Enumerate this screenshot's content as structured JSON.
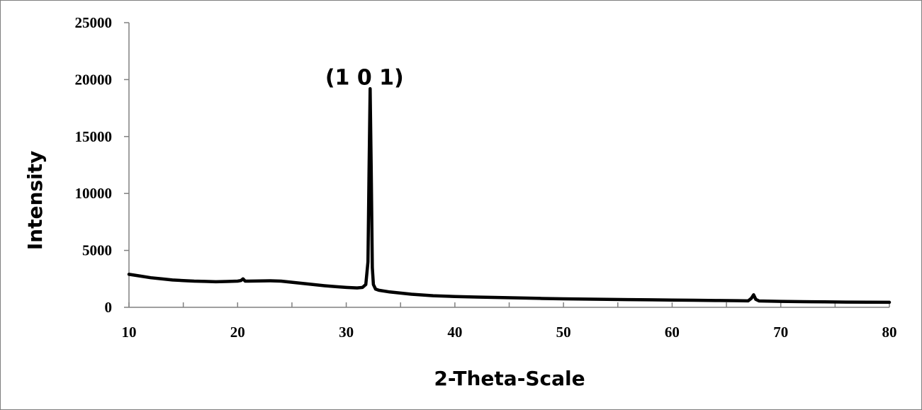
{
  "chart_data": {
    "type": "line",
    "title": "",
    "xlabel": "2-Theta-Scale",
    "ylabel": "Intensity",
    "xlim": [
      10,
      80
    ],
    "ylim": [
      0,
      25000
    ],
    "x_ticks": [
      10,
      20,
      30,
      40,
      50,
      60,
      70,
      80
    ],
    "y_ticks": [
      0,
      5000,
      10000,
      15000,
      20000,
      25000
    ],
    "grid": false,
    "legend": "none",
    "line_color": "#000000",
    "annotations": [
      {
        "text": "(1 0 1)",
        "x": 32.2,
        "y": 20000
      }
    ],
    "series": [
      {
        "x": [
          10,
          11,
          12,
          13,
          14,
          15,
          16,
          17,
          18,
          19,
          20,
          20.3,
          20.5,
          20.7,
          21,
          22,
          23,
          24,
          25,
          26,
          27,
          28,
          29,
          30,
          31,
          31.5,
          31.8,
          32.0,
          32.1,
          32.2,
          32.3,
          32.4,
          32.5,
          32.7,
          33,
          34,
          35,
          36,
          38,
          40,
          42,
          44,
          46,
          48,
          50,
          52,
          54,
          56,
          58,
          60,
          62,
          64,
          66,
          67,
          67.3,
          67.5,
          67.7,
          68,
          70,
          72,
          74,
          76,
          78,
          80
        ],
        "y": [
          2900,
          2750,
          2600,
          2500,
          2400,
          2350,
          2300,
          2280,
          2250,
          2270,
          2300,
          2350,
          2500,
          2300,
          2300,
          2320,
          2330,
          2300,
          2200,
          2100,
          2000,
          1900,
          1820,
          1750,
          1700,
          1750,
          2000,
          4000,
          12000,
          19200,
          12000,
          3500,
          2000,
          1600,
          1500,
          1350,
          1250,
          1150,
          1020,
          950,
          900,
          860,
          820,
          780,
          750,
          720,
          700,
          680,
          660,
          640,
          620,
          600,
          580,
          570,
          800,
          1100,
          700,
          560,
          520,
          500,
          480,
          460,
          450,
          440
        ]
      }
    ]
  }
}
